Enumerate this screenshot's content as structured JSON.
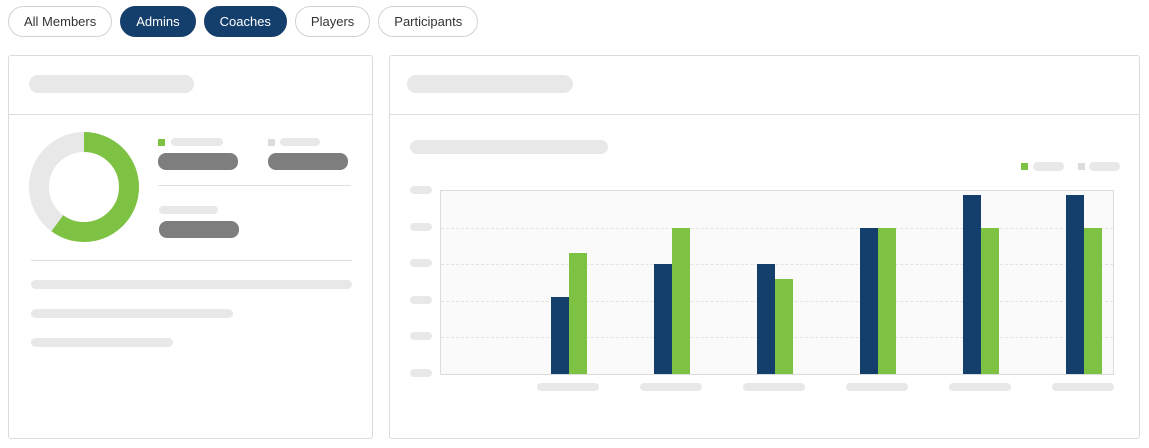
{
  "filters": {
    "items": [
      {
        "label": "All Members",
        "active": false
      },
      {
        "label": "Admins",
        "active": true
      },
      {
        "label": "Coaches",
        "active": true
      },
      {
        "label": "Players",
        "active": false
      },
      {
        "label": "Participants",
        "active": false
      }
    ]
  },
  "colors": {
    "navy": "#143f6c",
    "green": "#7dc242",
    "skeleton": "#e8e8e8",
    "skeleton_dark": "#7e7e7e"
  },
  "donut": {
    "filled_fraction": 0.6
  },
  "chart_data": {
    "type": "bar",
    "categories": [
      "",
      "",
      "",
      "",
      "",
      ""
    ],
    "series": [
      {
        "color": "#143f6c",
        "values": [
          2.1,
          3.0,
          3.0,
          4.0,
          4.9,
          4.9
        ]
      },
      {
        "color": "#7dc242",
        "values": [
          3.3,
          4.0,
          2.6,
          4.0,
          4.0,
          4.0
        ]
      }
    ],
    "ylim": [
      0,
      5
    ],
    "grid": true,
    "legend": "top-right"
  }
}
